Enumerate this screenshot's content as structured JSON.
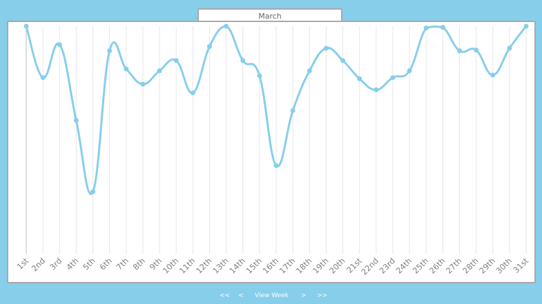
{
  "header": {
    "month_label": "March"
  },
  "nav": {
    "first_label": "<<",
    "prev_label": "<",
    "view_week_label": "View Week",
    "next_label": ">",
    "last_label": ">>"
  },
  "colors": {
    "line": "#87CEEB",
    "background": "#87CEEB",
    "grid": "#e6e6e6",
    "tick_label": "#808080"
  },
  "chart_data": {
    "type": "line",
    "categories": [
      "1st",
      "2nd",
      "3rd",
      "4th",
      "5th",
      "6th",
      "7th",
      "8th",
      "9th",
      "10th",
      "11th",
      "12th",
      "13th",
      "14th",
      "15th",
      "16th",
      "17th",
      "18th",
      "19th",
      "20th",
      "21st",
      "22nd",
      "23rd",
      "24th",
      "25th",
      "26th",
      "27th",
      "28th",
      "29th",
      "30th",
      "31st"
    ],
    "values": [
      100,
      77.4,
      91.9,
      58.6,
      27.2,
      89.2,
      81.2,
      74.5,
      80.4,
      84.9,
      70.7,
      91.1,
      100,
      84.9,
      78.2,
      38.7,
      62.9,
      80.4,
      90.3,
      84.9,
      76.9,
      72.0,
      77.4,
      80.4,
      99.2,
      99.5,
      89.2,
      89.5,
      78.5,
      90.3,
      100
    ],
    "ylim": [
      0,
      100
    ],
    "title": "",
    "xlabel": "",
    "ylabel": "",
    "grid": "vertical",
    "legend": "none"
  }
}
